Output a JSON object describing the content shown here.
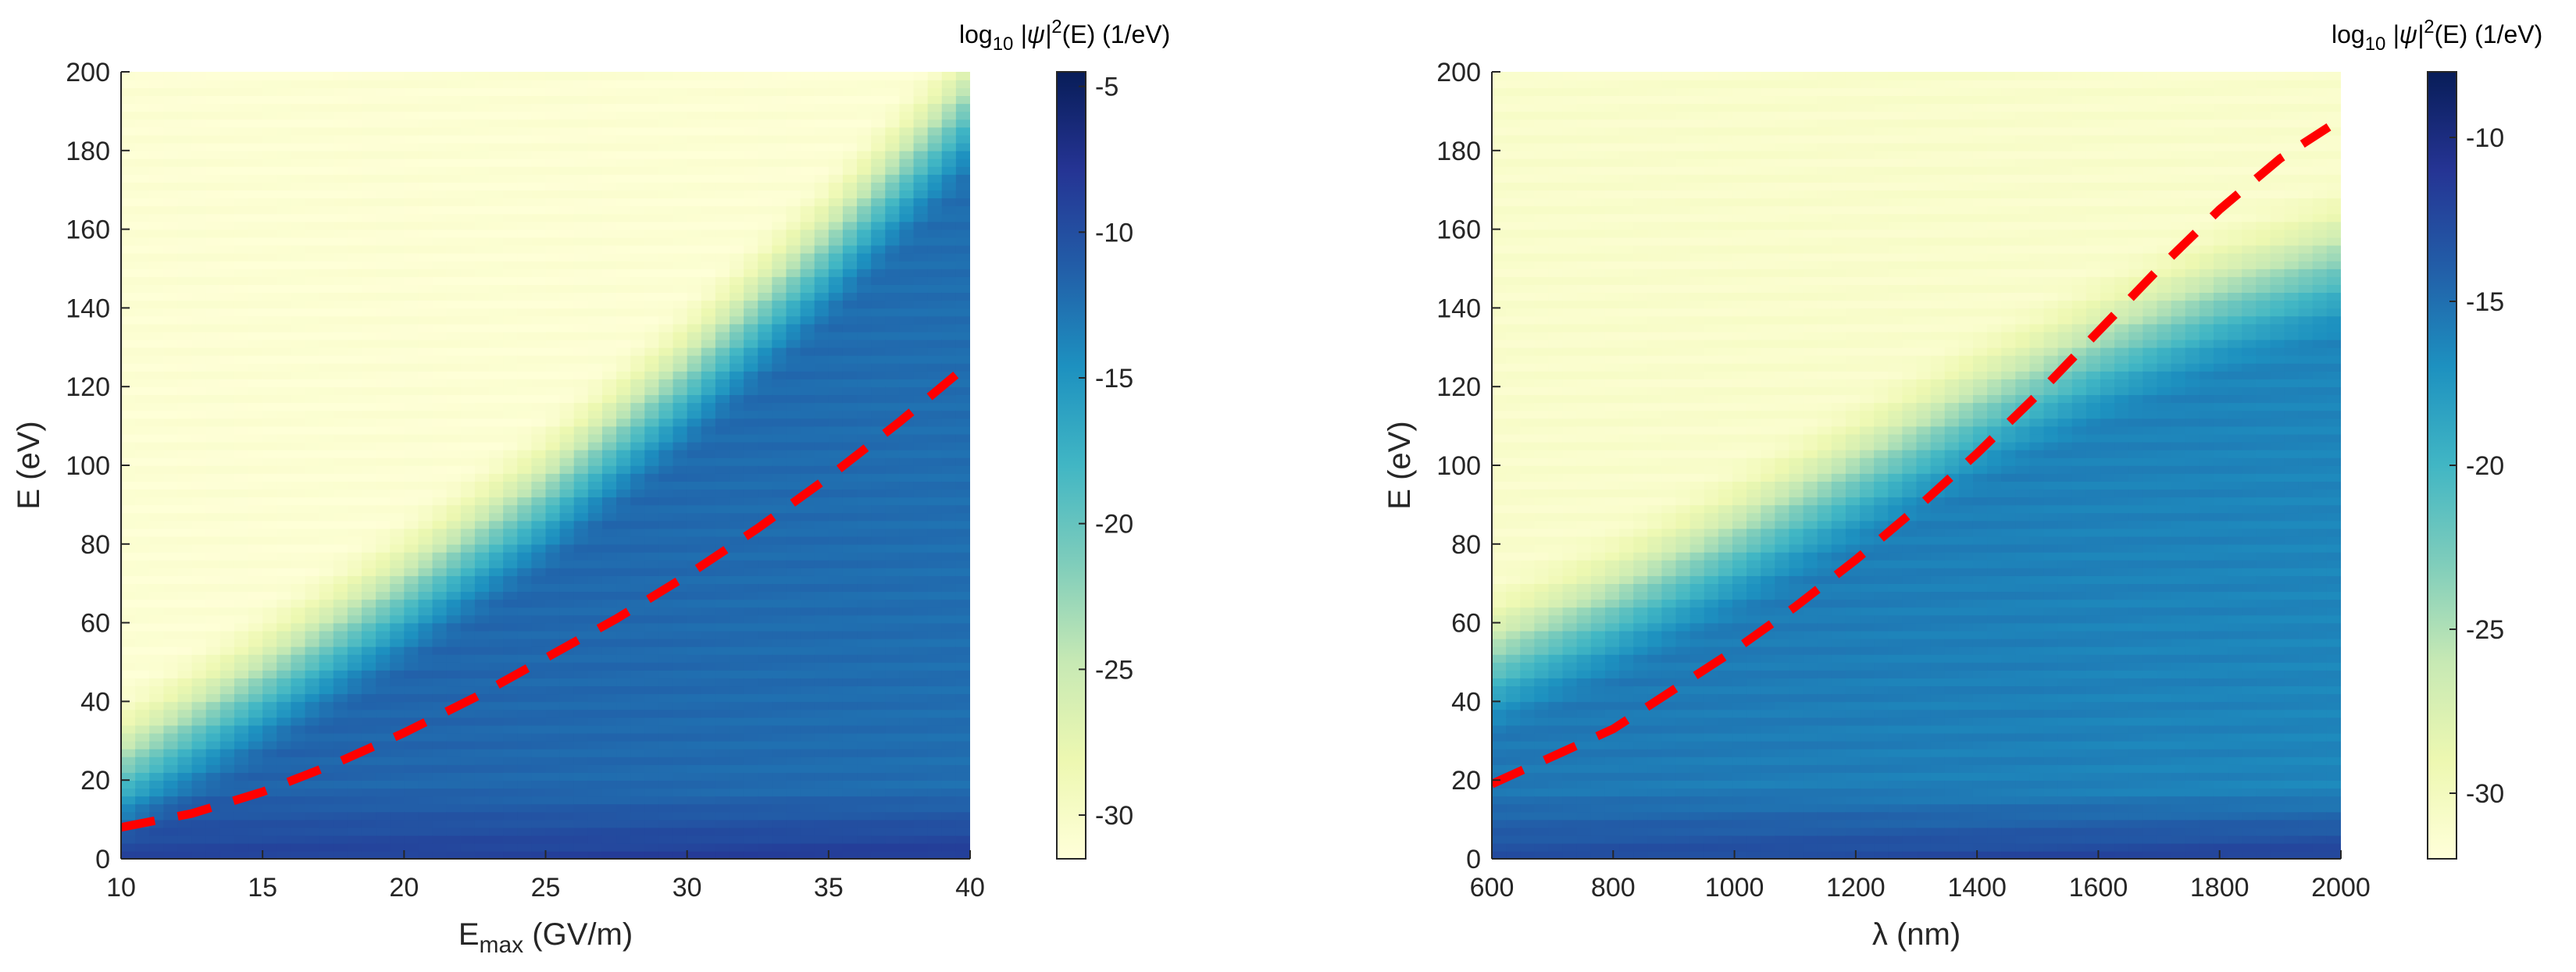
{
  "colormap": [
    "#ffffd9",
    "#edf8b1",
    "#c7e9b4",
    "#7fcdbb",
    "#41b6c4",
    "#1d91c0",
    "#225ea8",
    "#253494",
    "#081d58"
  ],
  "chart_data": [
    {
      "type": "heatmap",
      "title": "",
      "xlabel_main": "E",
      "xlabel_sub": "max",
      "xlabel_rest": " (GV/m)",
      "ylabel": "E (eV)",
      "xlim": [
        10,
        40
      ],
      "ylim": [
        0,
        200
      ],
      "xticks": [
        10,
        15,
        20,
        25,
        30,
        35,
        40
      ],
      "yticks": [
        0,
        20,
        40,
        60,
        80,
        100,
        120,
        140,
        160,
        180,
        200
      ],
      "colorbar": {
        "label_pre": "log",
        "label_sub": "10",
        "label_mid": " |ψ|",
        "label_sup": "2",
        "label_post": "(E) (1/eV)",
        "clim": [
          -31.5,
          -4.5
        ],
        "ticks": [
          -30,
          -25,
          -20,
          -15,
          -10,
          -5
        ]
      },
      "cutoff_x": [
        10,
        15,
        20,
        25,
        30,
        35,
        40
      ],
      "cutoff_y": [
        30,
        52,
        75,
        100,
        130,
        163,
        200
      ],
      "plateau_value": -11.5,
      "low_energy_value": -7.5,
      "background_value": -31,
      "dashed_line": {
        "color": "#ff0000",
        "x": [
          10,
          12.5,
          15,
          17.5,
          20,
          22.5,
          25,
          27.5,
          30,
          32.5,
          35,
          37.5,
          40
        ],
        "y": [
          8,
          11.5,
          17,
          24,
          32,
          41,
          51,
          61,
          72,
          84,
          97,
          111,
          126
        ]
      }
    },
    {
      "type": "heatmap",
      "title": "",
      "xlabel_main": "λ",
      "xlabel_sub": "",
      "xlabel_rest": " (nm)",
      "ylabel": "E (eV)",
      "xlim": [
        600,
        2000
      ],
      "ylim": [
        0,
        200
      ],
      "xticks": [
        600,
        800,
        1000,
        1200,
        1400,
        1600,
        1800,
        2000
      ],
      "yticks": [
        0,
        20,
        40,
        60,
        80,
        100,
        120,
        140,
        160,
        180,
        200
      ],
      "colorbar": {
        "label_pre": "log",
        "label_sub": "10",
        "label_mid": " |ψ|",
        "label_sup": "2",
        "label_post": "(E) (1/eV)",
        "clim": [
          -32,
          -8
        ],
        "ticks": [
          -30,
          -25,
          -20,
          -15,
          -10
        ]
      },
      "cutoff_x": [
        600,
        800,
        1000,
        1200,
        1400,
        1600,
        1800,
        2000
      ],
      "cutoff_y": [
        58,
        72,
        88,
        105,
        122,
        137,
        150,
        160
      ],
      "plateau_value": -15.5,
      "low_energy_value": -11,
      "background_value": -31,
      "dashed_line": {
        "color": "#ff0000",
        "x": [
          600,
          700,
          800,
          900,
          1000,
          1100,
          1200,
          1300,
          1400,
          1500,
          1600,
          1700,
          1800,
          1900,
          1980
        ],
        "y": [
          19,
          26,
          33,
          43,
          53,
          64,
          76,
          89,
          103,
          118,
          134,
          150,
          165,
          178,
          186
        ]
      }
    }
  ]
}
